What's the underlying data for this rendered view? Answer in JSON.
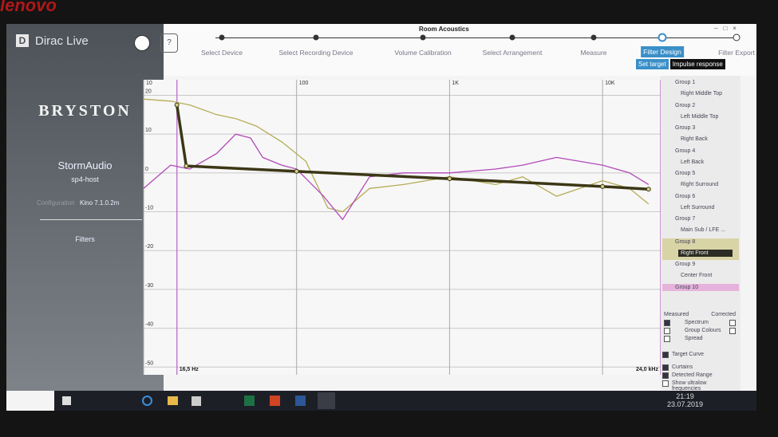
{
  "bezel_brand": "lenovo",
  "sidebar": {
    "logo": "Dirac Live",
    "logo_icon": "D",
    "brand": "BRYSTON",
    "device": "StormAudio",
    "host": "sp4-host",
    "config_label": "Configuration",
    "config_value": "Kino 7.1.0.2m",
    "nav": "Filters"
  },
  "window_title": "Room Acoustics",
  "window_controls": [
    "–",
    "□",
    "×"
  ],
  "help_button": "?",
  "steps": [
    "Select Device",
    "Select Recording Device",
    "Volume Calibration",
    "Select Arrangement",
    "Measure",
    "Filter Design",
    "Filter Export"
  ],
  "current_step_index": 5,
  "tabs": [
    "Set target",
    "Impulse response"
  ],
  "chart_data": {
    "type": "line",
    "xscale": "log",
    "xlim": [
      10,
      24000
    ],
    "ylim": [
      -52,
      24
    ],
    "xticks": [
      10,
      100,
      {
        "value": 1000,
        "label": "1K"
      },
      {
        "value": 10000,
        "label": "10K"
      }
    ],
    "yticks": [
      20,
      10,
      0,
      -10,
      -20,
      -30,
      -40,
      -50
    ],
    "grid": true,
    "range_markers": [
      {
        "value": 16.5,
        "label": "16,5 Hz",
        "color": "#c27ad0"
      },
      {
        "value": 24000,
        "label": "24,0 kHz",
        "color": "#c27ad0"
      }
    ],
    "series": [
      {
        "name": "Measured",
        "color": "#b5ad55",
        "x": [
          10,
          15,
          20,
          30,
          40,
          55,
          80,
          115,
          160,
          200,
          300,
          500,
          1000,
          2000,
          3000,
          5000,
          10000,
          15000,
          20000
        ],
        "values": [
          19,
          18.5,
          17.5,
          15,
          14,
          12,
          8,
          3,
          -9,
          -10,
          -4,
          -3,
          -1,
          -3,
          -1,
          -6,
          -2,
          -4,
          -8
        ]
      },
      {
        "name": "Corrected",
        "color": "#b24ab8",
        "x": [
          10,
          15,
          20,
          30,
          40,
          50,
          60,
          80,
          100,
          150,
          200,
          300,
          500,
          1000,
          2000,
          3000,
          5000,
          10000,
          15000,
          20000
        ],
        "values": [
          -4,
          2,
          1,
          5,
          10,
          9,
          4,
          2,
          1,
          -6,
          -12,
          -1,
          0,
          0,
          1,
          2,
          4,
          2,
          0,
          -3
        ]
      },
      {
        "name": "Target Curve",
        "color": "#3b3716",
        "x": [
          16.5,
          19,
          100,
          1000,
          10000,
          20000
        ],
        "values": [
          17.5,
          1.8,
          0.4,
          -1.5,
          -3.5,
          -4.2
        ]
      }
    ]
  },
  "groups": [
    {
      "label": "Group 1",
      "name": "Right Middle Top"
    },
    {
      "label": "Group 2",
      "name": "Left Middle Top"
    },
    {
      "label": "Group 3",
      "name": "Right Back"
    },
    {
      "label": "Group 4",
      "name": "Left Back"
    },
    {
      "label": "Group 5",
      "name": "Right Surround"
    },
    {
      "label": "Group 6",
      "name": "Left Surround"
    },
    {
      "label": "Group 7",
      "name": "Main Sub / LFE ..."
    },
    {
      "label": "Group 8",
      "name": "Right Front",
      "color": "#d9d4a6"
    },
    {
      "label": "Group 9",
      "name": "Center Front"
    },
    {
      "label": "Group 10",
      "color": "#e6b3dc"
    }
  ],
  "selected_group": 7,
  "view_options": {
    "columns": [
      "Measured",
      "Corrected"
    ],
    "rows": [
      {
        "label": "Spectrum",
        "measured": true,
        "corrected": false
      },
      {
        "label": "Group Colours",
        "measured": false,
        "corrected": false
      },
      {
        "label": "Spread",
        "measured": false
      }
    ],
    "toggles": [
      {
        "label": "Target Curve",
        "checked": true
      },
      {
        "label": "Curtains",
        "checked": true
      },
      {
        "label": "Detected Range",
        "checked": true
      },
      {
        "label": "Show ultralow frequencies",
        "checked": false
      }
    ]
  },
  "taskbar": {
    "time": "21:19",
    "date": "23.07.2019"
  }
}
